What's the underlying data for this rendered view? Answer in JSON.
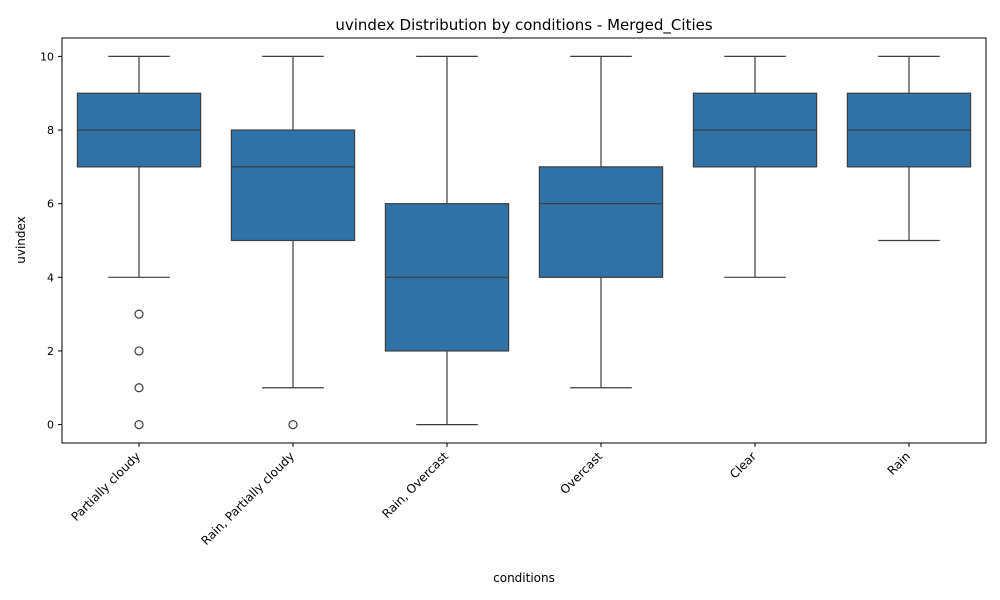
{
  "chart_data": {
    "type": "box",
    "title": "uvindex Distribution by conditions - Merged_Cities",
    "xlabel": "conditions",
    "ylabel": "uvindex",
    "ylim": [
      -0.5,
      10.5
    ],
    "yticks": [
      0,
      2,
      4,
      6,
      8,
      10
    ],
    "grid": false,
    "box_color": "#2e72a8",
    "categories": [
      "Partially cloudy",
      "Rain, Partially cloudy",
      "Rain, Overcast",
      "Overcast",
      "Clear",
      "Rain"
    ],
    "boxes": [
      {
        "category": "Partially cloudy",
        "whisker_low": 4,
        "q1": 7,
        "median": 8,
        "q3": 9,
        "whisker_high": 10,
        "outliers": [
          3,
          2,
          1,
          0
        ]
      },
      {
        "category": "Rain, Partially cloudy",
        "whisker_low": 1,
        "q1": 5,
        "median": 7,
        "q3": 8,
        "whisker_high": 10,
        "outliers": [
          0
        ]
      },
      {
        "category": "Rain, Overcast",
        "whisker_low": 0,
        "q1": 2,
        "median": 4,
        "q3": 6,
        "whisker_high": 10,
        "outliers": []
      },
      {
        "category": "Overcast",
        "whisker_low": 1,
        "q1": 4,
        "median": 6,
        "q3": 7,
        "whisker_high": 10,
        "outliers": []
      },
      {
        "category": "Clear",
        "whisker_low": 4,
        "q1": 7,
        "median": 8,
        "q3": 9,
        "whisker_high": 10,
        "outliers": []
      },
      {
        "category": "Rain",
        "whisker_low": 5,
        "q1": 7,
        "median": 8,
        "q3": 9,
        "whisker_high": 10,
        "outliers": []
      }
    ]
  }
}
